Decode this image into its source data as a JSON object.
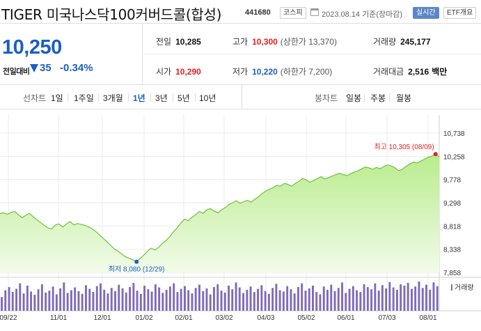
{
  "header": {
    "title": "TIGER 미국나스닥100커버드콜(합성)",
    "code": "441680",
    "market_badge": "코스피",
    "date_text": "2023.08.14 기준(장마감)",
    "realtime_label": "실시간",
    "etf_label": "ETF개요"
  },
  "price": {
    "current": "10,250",
    "change_label": "전일대비",
    "change_value": "35",
    "change_pct": "-0.34%",
    "direction": "down"
  },
  "stats": {
    "prev_close": {
      "label": "전일",
      "value": "10,285"
    },
    "high": {
      "label": "고가",
      "value": "10,300",
      "sub": "(상한가 13,370)"
    },
    "volume": {
      "label": "거래량",
      "value": "245,177"
    },
    "open": {
      "label": "시가",
      "value": "10,290"
    },
    "low": {
      "label": "저가",
      "value": "10,220",
      "sub": "(하한가 7,200)"
    },
    "amount": {
      "label": "거래대금",
      "value": "2,516",
      "unit": "백만"
    }
  },
  "line_tabs": {
    "label": "선차트",
    "items": [
      "1일",
      "1주일",
      "3개월",
      "1년",
      "3년",
      "5년",
      "10년"
    ],
    "active": "1년"
  },
  "candle_tabs": {
    "label": "봉차트",
    "items": [
      "일봉",
      "주봉",
      "월봉"
    ]
  },
  "colors": {
    "up": "#e41f1f",
    "down": "#1a5ec6",
    "area_fill": "#b8ec8c",
    "area_line": "#6cc23a",
    "volume_bar": "#7e6ab8"
  },
  "chart_data": [
    {
      "type": "area",
      "ylim": [
        7858,
        10738
      ],
      "yticks": [
        "10,738",
        "10,258",
        "9,778",
        "9,298",
        "8,818",
        "8,338",
        "7,858"
      ],
      "xticks": [
        "09/22",
        "11/01",
        "12/01",
        "01/02",
        "02/01",
        "03/02",
        "04/03",
        "05/02",
        "06/01",
        "07/03",
        "08/01"
      ],
      "grid": true,
      "high_label": "최고 10,305 (08/09)",
      "low_label": "최저 8,080 (12/29)",
      "values": [
        9075,
        9090,
        9060,
        9100,
        9120,
        9050,
        8990,
        9040,
        9080,
        9010,
        8950,
        8890,
        8830,
        8780,
        8760,
        8840,
        8860,
        8800,
        8860,
        8910,
        8840,
        8870,
        8850,
        8830,
        8800,
        8760,
        8700,
        8630,
        8560,
        8490,
        8420,
        8340,
        8300,
        8240,
        8180,
        8150,
        8120,
        8080,
        8150,
        8220,
        8300,
        8360,
        8320,
        8380,
        8460,
        8520,
        8600,
        8700,
        8780,
        8880,
        8960,
        8930,
        9000,
        9050,
        9120,
        9080,
        9150,
        9180,
        9130,
        9090,
        9150,
        9200,
        9260,
        9300,
        9340,
        9290,
        9320,
        9350,
        9310,
        9370,
        9420,
        9490,
        9540,
        9580,
        9610,
        9660,
        9640,
        9700,
        9680,
        9640,
        9700,
        9740,
        9800,
        9770,
        9720,
        9760,
        9800,
        9840,
        9790,
        9820,
        9850,
        9880,
        9910,
        9880,
        9860,
        9900,
        9930,
        9960,
        10000,
        10040,
        10020,
        9990,
        10030,
        10000,
        10050,
        10080,
        10060,
        10020,
        9960,
        9990,
        10050,
        10100,
        10140,
        10120,
        10160,
        10200,
        10240,
        10260,
        10305,
        10250
      ]
    },
    {
      "type": "bar",
      "legend": "거래량",
      "values": [
        30,
        45,
        52,
        41,
        48,
        60,
        38,
        55,
        42,
        35,
        47,
        58,
        40,
        44,
        53,
        36,
        49,
        62,
        39,
        45,
        51,
        43,
        37,
        56,
        48,
        41,
        54,
        60,
        46,
        38,
        50,
        43,
        57,
        49,
        40,
        52,
        61,
        44,
        37,
        55,
        47,
        42,
        58,
        51,
        39,
        46,
        53,
        60,
        41,
        48,
        54,
        45,
        38,
        50,
        57,
        43,
        49,
        36,
        52,
        58,
        44,
        40,
        55,
        47,
        62,
        51,
        39,
        46,
        53,
        41,
        48,
        56,
        43,
        37,
        50,
        59,
        45,
        42,
        54,
        47,
        38,
        52,
        60,
        44,
        49,
        55,
        41,
        36,
        53,
        46,
        57,
        43,
        50,
        62,
        39,
        48,
        54,
        45,
        41,
        58,
        52,
        47,
        60,
        44,
        56,
        49,
        63,
        51,
        46,
        58,
        55,
        61,
        48,
        53,
        64,
        50,
        57,
        46,
        62,
        54
      ]
    }
  ]
}
